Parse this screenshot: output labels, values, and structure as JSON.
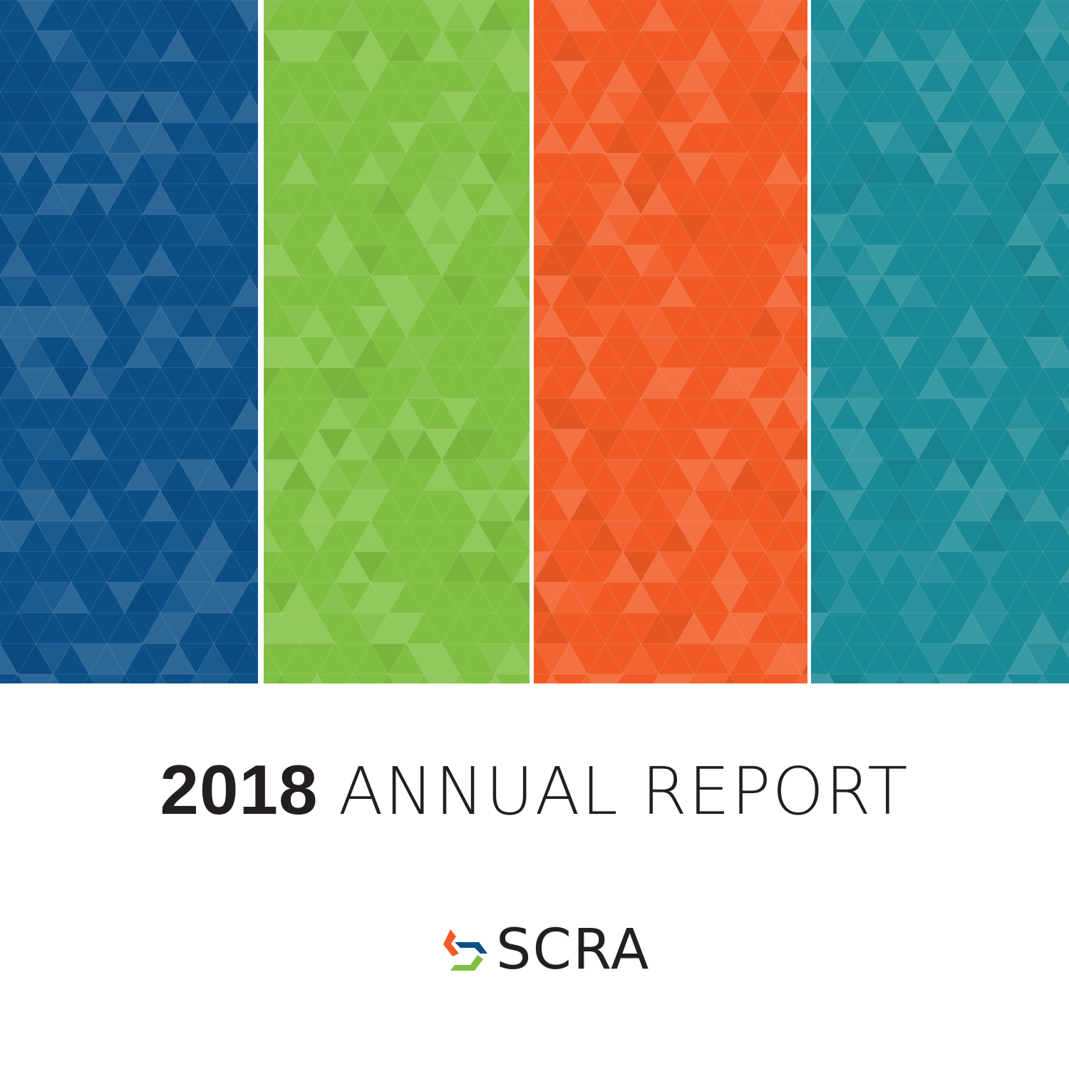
{
  "cover": {
    "stripe_colors": [
      "#0b4f86",
      "#80bf42",
      "#f15a24",
      "#1a8a96"
    ],
    "title_year": "2018",
    "title_rest": "ANNUAL REPORT"
  },
  "logo": {
    "text": "SCRA",
    "colors": {
      "orange": "#f15a24",
      "blue": "#0b4f86",
      "green": "#80bf42"
    }
  }
}
